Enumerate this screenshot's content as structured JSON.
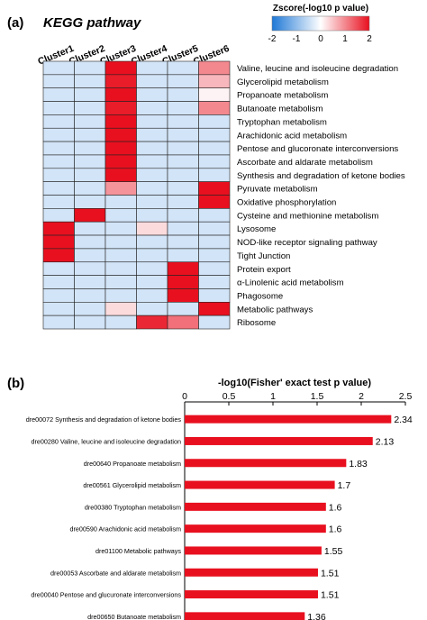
{
  "chart_data": [
    {
      "panel": "(a)",
      "type": "heatmap",
      "title": "KEGG pathway",
      "colorbar": {
        "label": "Zscore(-log10 p value)",
        "ticks": [
          "-2",
          "-1",
          "0",
          "1",
          "2"
        ],
        "range": [
          -2,
          2
        ],
        "colors": {
          "low": "#1f78d6",
          "mid": "#ffffff",
          "high": "#e8101f"
        }
      },
      "columns": [
        "Cluster1",
        "Cluster2",
        "Cluster3",
        "Cluster4",
        "Cluster5",
        "Cluster6"
      ],
      "rows": [
        "Valine, leucine and isoleucine degradation",
        "Glycerolipid metabolism",
        "Propanoate metabolism",
        "Butanoate metabolism",
        "Tryptophan metabolism",
        "Arachidonic acid metabolism",
        "Pentose and glucoronate interconversions",
        "Ascorbate and aldarate metabolism",
        "Synthesis and degradation of ketone bodies",
        "Pyruvate metabolism",
        "Oxidative phosphorylation",
        "Cysteine and methionine metabolism",
        "Lysosome",
        "NOD-like receptor signaling pathway",
        "Tight Junction",
        "Protein export",
        "α-Linolenic acid metabolism",
        "Phagosome",
        "Metabolic pathways",
        "Ribosome"
      ],
      "values": [
        [
          -0.4,
          -0.4,
          2.0,
          -0.4,
          -0.4,
          1.0
        ],
        [
          -0.4,
          -0.4,
          1.9,
          -0.4,
          -0.4,
          0.6
        ],
        [
          -0.4,
          -0.4,
          2.0,
          -0.4,
          -0.4,
          0.1
        ],
        [
          -0.4,
          -0.4,
          1.9,
          -0.4,
          -0.4,
          1.0
        ],
        [
          -0.4,
          -0.4,
          2.0,
          -0.4,
          -0.4,
          -0.4
        ],
        [
          -0.4,
          -0.4,
          2.0,
          -0.4,
          -0.4,
          -0.4
        ],
        [
          -0.4,
          -0.4,
          2.0,
          -0.4,
          -0.4,
          -0.4
        ],
        [
          -0.4,
          -0.4,
          2.0,
          -0.4,
          -0.4,
          -0.4
        ],
        [
          -0.4,
          -0.4,
          2.0,
          -0.4,
          -0.4,
          -0.4
        ],
        [
          -0.4,
          -0.4,
          0.9,
          -0.4,
          -0.4,
          2.0
        ],
        [
          -0.4,
          -0.4,
          -0.4,
          -0.4,
          -0.4,
          2.0
        ],
        [
          -0.4,
          2.0,
          -0.4,
          -0.4,
          -0.4,
          -0.4
        ],
        [
          2.0,
          -0.4,
          -0.4,
          0.3,
          -0.4,
          -0.4
        ],
        [
          2.0,
          -0.4,
          -0.4,
          -0.4,
          -0.4,
          -0.4
        ],
        [
          2.0,
          -0.4,
          -0.4,
          -0.4,
          -0.4,
          -0.4
        ],
        [
          -0.4,
          -0.4,
          -0.4,
          -0.4,
          2.0,
          -0.4
        ],
        [
          -0.4,
          -0.4,
          -0.4,
          -0.4,
          2.0,
          -0.4
        ],
        [
          -0.4,
          -0.4,
          -0.4,
          -0.4,
          2.0,
          -0.4
        ],
        [
          -0.4,
          -0.4,
          0.3,
          -0.4,
          -0.4,
          2.0
        ],
        [
          -0.4,
          -0.4,
          -0.4,
          1.8,
          1.2,
          -0.4
        ]
      ]
    },
    {
      "panel": "(b)",
      "type": "bar",
      "orientation": "horizontal",
      "xlabel": "-log10(Fisher' exact test p value)",
      "xlim": [
        0,
        2.5
      ],
      "xticks": [
        "0",
        "0.5",
        "1",
        "1.5",
        "2",
        "2.5"
      ],
      "xtick_values": [
        0,
        0.5,
        1,
        1.5,
        2,
        2.5
      ],
      "bar_color": "#e8101f",
      "categories": [
        "dre00072 Synthesis and degradation of ketone bodies",
        "dre00280 Valine, leucine and isoleucine degradation",
        "dre00640 Propanoate metabolism",
        "dre00561 Glycerolipid metabolism",
        "dre00380 Tryptophan metabolism",
        "dre00590 Arachidonic acid metabolism",
        "dre01100 Metabolic pathways",
        "dre00053 Ascorbate and aldarate metabolism",
        "dre00040 Pentose and glucuronate interconversions",
        "dre00650 Butanoate metabolism"
      ],
      "values": [
        2.34,
        2.13,
        1.83,
        1.7,
        1.6,
        1.6,
        1.55,
        1.51,
        1.51,
        1.36
      ],
      "value_labels": [
        "2.34",
        "2.13",
        "1.83",
        "1.7",
        "1.6",
        "1.6",
        "1.55",
        "1.51",
        "1.51",
        "1.36"
      ]
    }
  ]
}
